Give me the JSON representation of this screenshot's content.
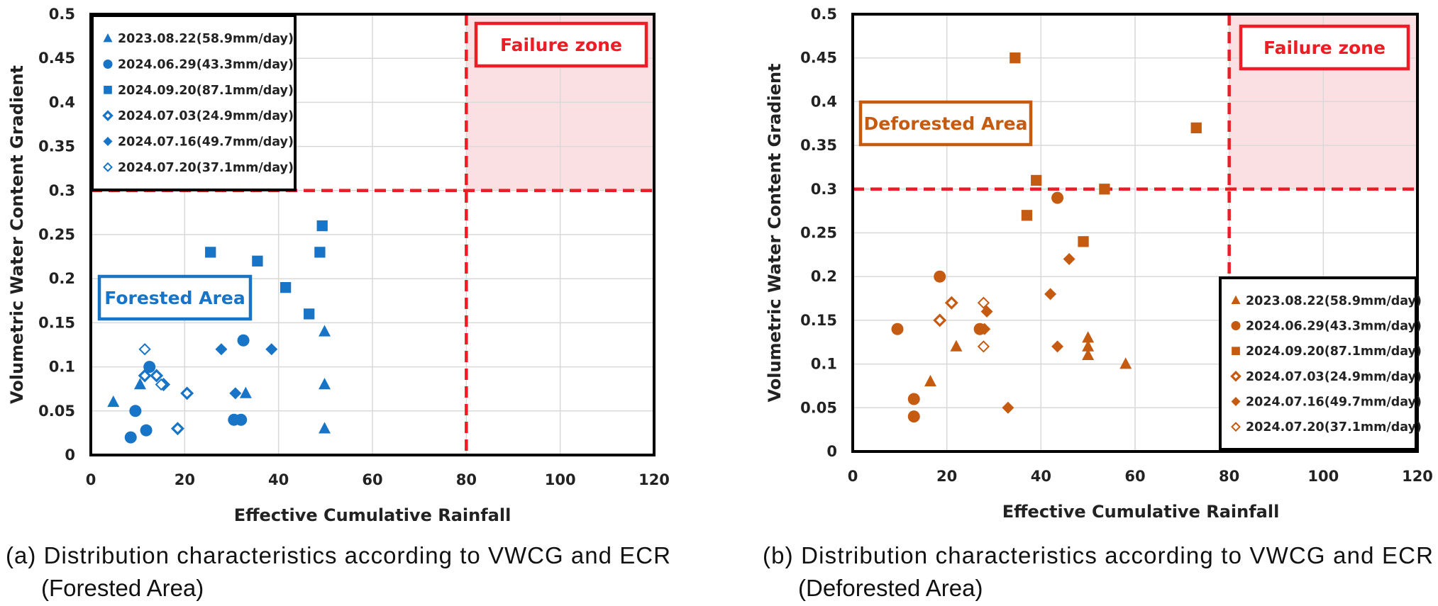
{
  "chart_data": [
    {
      "type": "scatter",
      "caption": [
        "(a) Distribution characteristics according to VWCG and ECR",
        "(Forested Area)"
      ],
      "xlabel": "Effective Cumulative Rainfall",
      "ylabel": "Volumetric Water Content Gradient",
      "xlim": [
        0,
        120
      ],
      "ylim": [
        0,
        0.5
      ],
      "x_ticks": [
        0,
        20,
        40,
        60,
        80,
        100,
        120
      ],
      "y_ticks": [
        0,
        0.05,
        0.1,
        0.15,
        0.2,
        0.25,
        0.3,
        0.35,
        0.4,
        0.45,
        0.5
      ],
      "y_tick_labels": [
        "0",
        "0.05",
        "0.1",
        "0.15",
        "0.2",
        "0.25",
        "0.3",
        "0.35",
        "0.4",
        "0.45",
        "0.5"
      ],
      "grid": true,
      "color": "#1874c6",
      "legend_position": "top-left",
      "area_label": "Forested Area",
      "failure_zone": {
        "label": "Failure zone",
        "x_threshold": 80,
        "y_threshold": 0.3,
        "color": "#ee1c25",
        "fill": "#fbe0e3"
      },
      "series": [
        {
          "name": "2023.08.22(58.9mm/day)",
          "marker": "triangle",
          "points": [
            [
              4.8,
              0.06
            ],
            [
              10.5,
              0.08
            ],
            [
              33,
              0.07
            ],
            [
              49.8,
              0.14
            ],
            [
              49.8,
              0.08
            ],
            [
              49.8,
              0.03
            ]
          ]
        },
        {
          "name": "2024.06.29(43.3mm/day)",
          "marker": "circle",
          "points": [
            [
              8.5,
              0.02
            ],
            [
              9.5,
              0.05
            ],
            [
              11.8,
              0.028
            ],
            [
              12.5,
              0.1
            ],
            [
              30.5,
              0.04
            ],
            [
              32,
              0.04
            ],
            [
              32.5,
              0.13
            ]
          ]
        },
        {
          "name": "2024.09.20(87.1mm/day)",
          "marker": "square",
          "points": [
            [
              25.5,
              0.23
            ],
            [
              35.5,
              0.22
            ],
            [
              41.5,
              0.19
            ],
            [
              46.5,
              0.16
            ],
            [
              48.8,
              0.23
            ],
            [
              49.3,
              0.26
            ]
          ]
        },
        {
          "name": "2024.07.03(24.9mm/day)",
          "marker": "diamond-open-thick",
          "points": [
            [
              11.5,
              0.09
            ],
            [
              14,
              0.09
            ],
            [
              15.5,
              0.08
            ],
            [
              18.5,
              0.03
            ],
            [
              20.5,
              0.07
            ]
          ]
        },
        {
          "name": "2024.07.16(49.7mm/day)",
          "marker": "diamond",
          "points": [
            [
              27.8,
              0.12
            ],
            [
              30.8,
              0.07
            ],
            [
              38.5,
              0.12
            ]
          ]
        },
        {
          "name": "2024.07.20(37.1mm/day)",
          "marker": "diamond-open",
          "points": [
            [
              11.5,
              0.12
            ],
            [
              15,
              0.08
            ]
          ]
        }
      ]
    },
    {
      "type": "scatter",
      "caption": [
        "(b) Distribution characteristics according to VWCG and ECR",
        "(Deforested Area)"
      ],
      "xlabel": "Effective Cumulative Rainfall",
      "ylabel": "Volumetric Water Content Gradient",
      "xlim": [
        0,
        120
      ],
      "ylim": [
        0,
        0.5
      ],
      "x_ticks": [
        0,
        20,
        40,
        60,
        80,
        100,
        120
      ],
      "y_ticks": [
        0,
        0.05,
        0.1,
        0.15,
        0.2,
        0.25,
        0.3,
        0.35,
        0.4,
        0.45,
        0.5
      ],
      "y_tick_labels": [
        "0",
        "0.05",
        "0.1",
        "0.15",
        "0.2",
        "0.25",
        "0.3",
        "0.35",
        "0.4",
        "0.45",
        "0.5"
      ],
      "grid": true,
      "color": "#c55a11",
      "legend_position": "bottom-right",
      "area_label": "Deforested Area",
      "failure_zone": {
        "label": "Failure zone",
        "x_threshold": 80,
        "y_threshold": 0.3,
        "color": "#ee1c25",
        "fill": "#fbe0e3"
      },
      "series": [
        {
          "name": "2023.08.22(58.9mm/day)",
          "marker": "triangle",
          "points": [
            [
              16.5,
              0.08
            ],
            [
              22,
              0.12
            ],
            [
              50,
              0.13
            ],
            [
              50,
              0.12
            ],
            [
              50,
              0.11
            ],
            [
              58,
              0.1
            ]
          ]
        },
        {
          "name": "2024.06.29(43.3mm/day)",
          "marker": "circle",
          "points": [
            [
              9.5,
              0.14
            ],
            [
              13,
              0.06
            ],
            [
              13,
              0.04
            ],
            [
              18.5,
              0.2
            ],
            [
              27,
              0.14
            ],
            [
              43.5,
              0.29
            ]
          ]
        },
        {
          "name": "2024.09.20(87.1mm/day)",
          "marker": "square",
          "points": [
            [
              34.5,
              0.45
            ],
            [
              37,
              0.27
            ],
            [
              39,
              0.31
            ],
            [
              49,
              0.24
            ],
            [
              53.5,
              0.3
            ],
            [
              73,
              0.37
            ]
          ]
        },
        {
          "name": "2024.07.03(24.9mm/day)",
          "marker": "diamond-open-thick",
          "points": [
            [
              18.5,
              0.15
            ],
            [
              21,
              0.17
            ]
          ]
        },
        {
          "name": "2024.07.16(49.7mm/day)",
          "marker": "diamond",
          "points": [
            [
              28,
              0.14
            ],
            [
              28.5,
              0.16
            ],
            [
              33,
              0.05
            ],
            [
              42,
              0.18
            ],
            [
              43.5,
              0.12
            ],
            [
              46,
              0.22
            ]
          ]
        },
        {
          "name": "2024.07.20(37.1mm/day)",
          "marker": "diamond-open",
          "points": [
            [
              27.8,
              0.17
            ],
            [
              27.8,
              0.12
            ]
          ]
        }
      ]
    }
  ]
}
